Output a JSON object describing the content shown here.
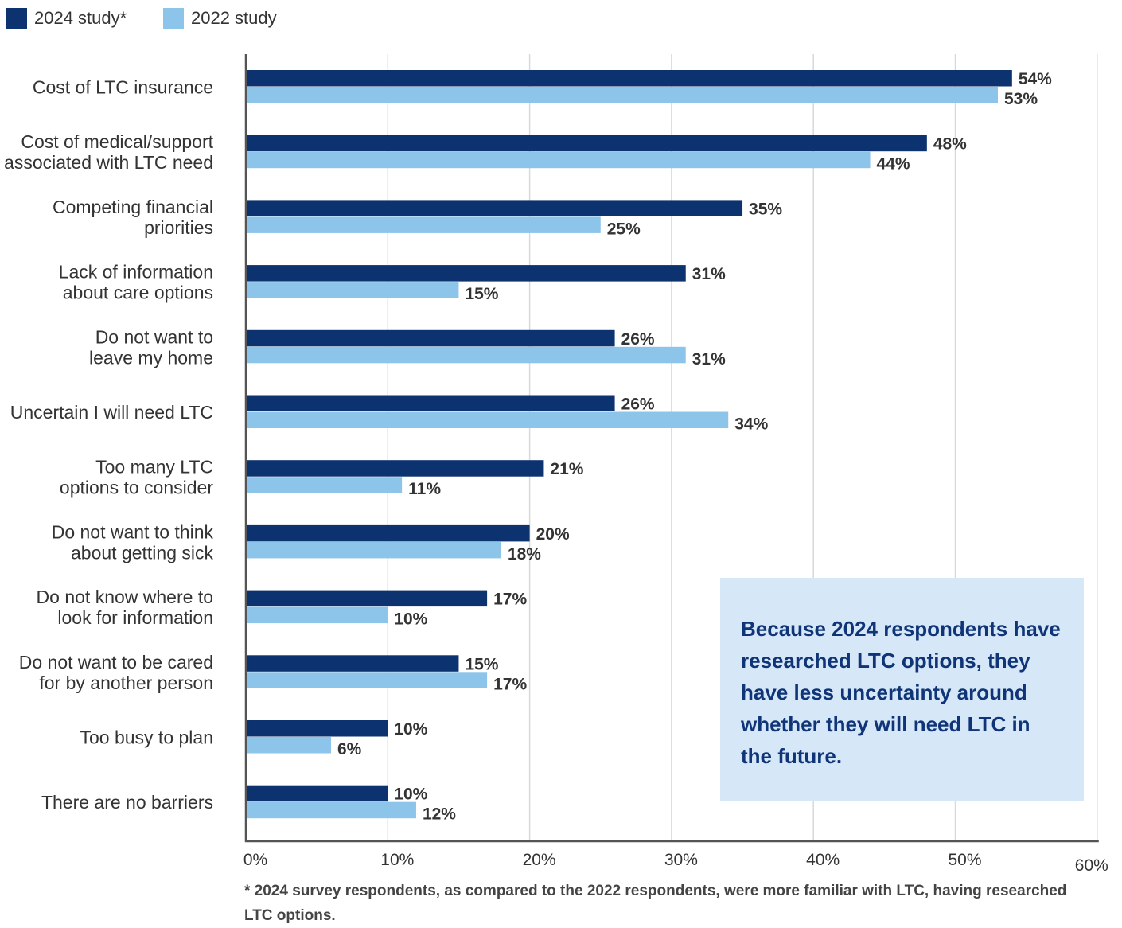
{
  "chart_data": {
    "type": "bar",
    "orientation": "horizontal",
    "categories": [
      [
        "Cost of LTC insurance"
      ],
      [
        "Cost of medical/support",
        "associated with LTC need"
      ],
      [
        "Competing financial",
        "priorities"
      ],
      [
        "Lack of information",
        "about care options"
      ],
      [
        "Do not want to",
        "leave my home"
      ],
      [
        "Uncertain I will need LTC"
      ],
      [
        "Too many LTC",
        "options to consider"
      ],
      [
        "Do not want to think",
        "about getting sick"
      ],
      [
        "Do not know where to",
        "look for information"
      ],
      [
        "Do not want to be cared",
        "for by another person"
      ],
      [
        "Too busy to plan"
      ],
      [
        "There are no barriers"
      ]
    ],
    "series": [
      {
        "name": "2024 study*",
        "color": "#0d3270",
        "values": [
          54,
          48,
          35,
          31,
          26,
          26,
          21,
          20,
          17,
          15,
          10,
          10
        ]
      },
      {
        "name": "2022 study",
        "color": "#8cc4ea",
        "values": [
          53,
          44,
          25,
          15,
          31,
          34,
          11,
          18,
          10,
          17,
          6,
          12
        ]
      }
    ],
    "value_suffix": "%",
    "xlim": [
      0,
      60
    ],
    "x_ticks": [
      "0%",
      "10%",
      "20%",
      "30%",
      "40%",
      "50%",
      "60%"
    ],
    "grid": true,
    "legend_position": "top-left",
    "gridline_color": "#d9d9d9"
  },
  "callout": {
    "text": "Because 2024 respondents have researched LTC options, they have less uncertainty around whether they will need LTC in the future."
  },
  "footnote": {
    "text": "* 2024 survey respondents, as compared to the 2022 respondents, were more familiar with LTC, having researched LTC options."
  }
}
